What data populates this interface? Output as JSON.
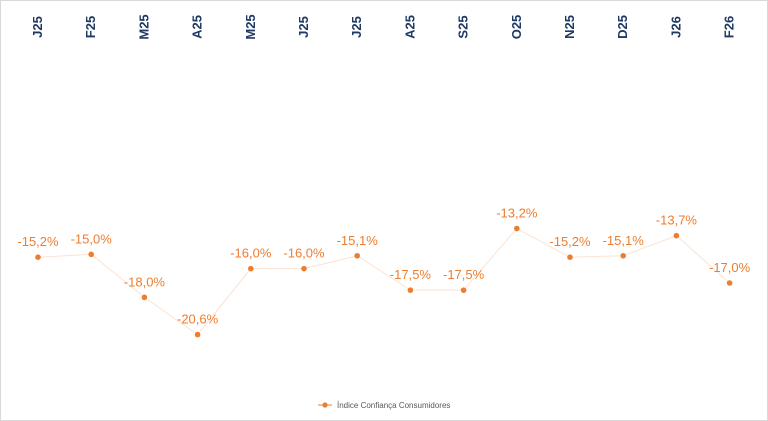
{
  "chart_data": {
    "type": "line",
    "categories": [
      "J25",
      "F25",
      "M25",
      "A25",
      "M25",
      "J25",
      "J25",
      "A25",
      "S25",
      "O25",
      "N25",
      "D25",
      "J26",
      "F26"
    ],
    "series": [
      {
        "name": "Índice Confiança Consumidores",
        "values": [
          -15.2,
          -15.0,
          -18.0,
          -20.6,
          -16.0,
          -16.0,
          -15.1,
          -17.5,
          -17.5,
          -13.2,
          -15.2,
          -15.1,
          -13.7,
          -17.0
        ],
        "labels": [
          "-15,2%",
          "-15,0%",
          "-18,0%",
          "-20,6%",
          "-16,0%",
          "-16,0%",
          "-15,1%",
          "-17,5%",
          "-17,5%",
          "-13,2%",
          "-15,2%",
          "-15,1%",
          "-13,7%",
          "-17,0%"
        ],
        "color": "#ed7d31"
      }
    ],
    "ylim": [
      -26,
      -2
    ],
    "category_axis_position": "top",
    "category_label_orientation": "rotated",
    "grid": false,
    "legend_position": "bottom",
    "text_color": "#1f3864",
    "line_color": "#fbe3d2"
  }
}
